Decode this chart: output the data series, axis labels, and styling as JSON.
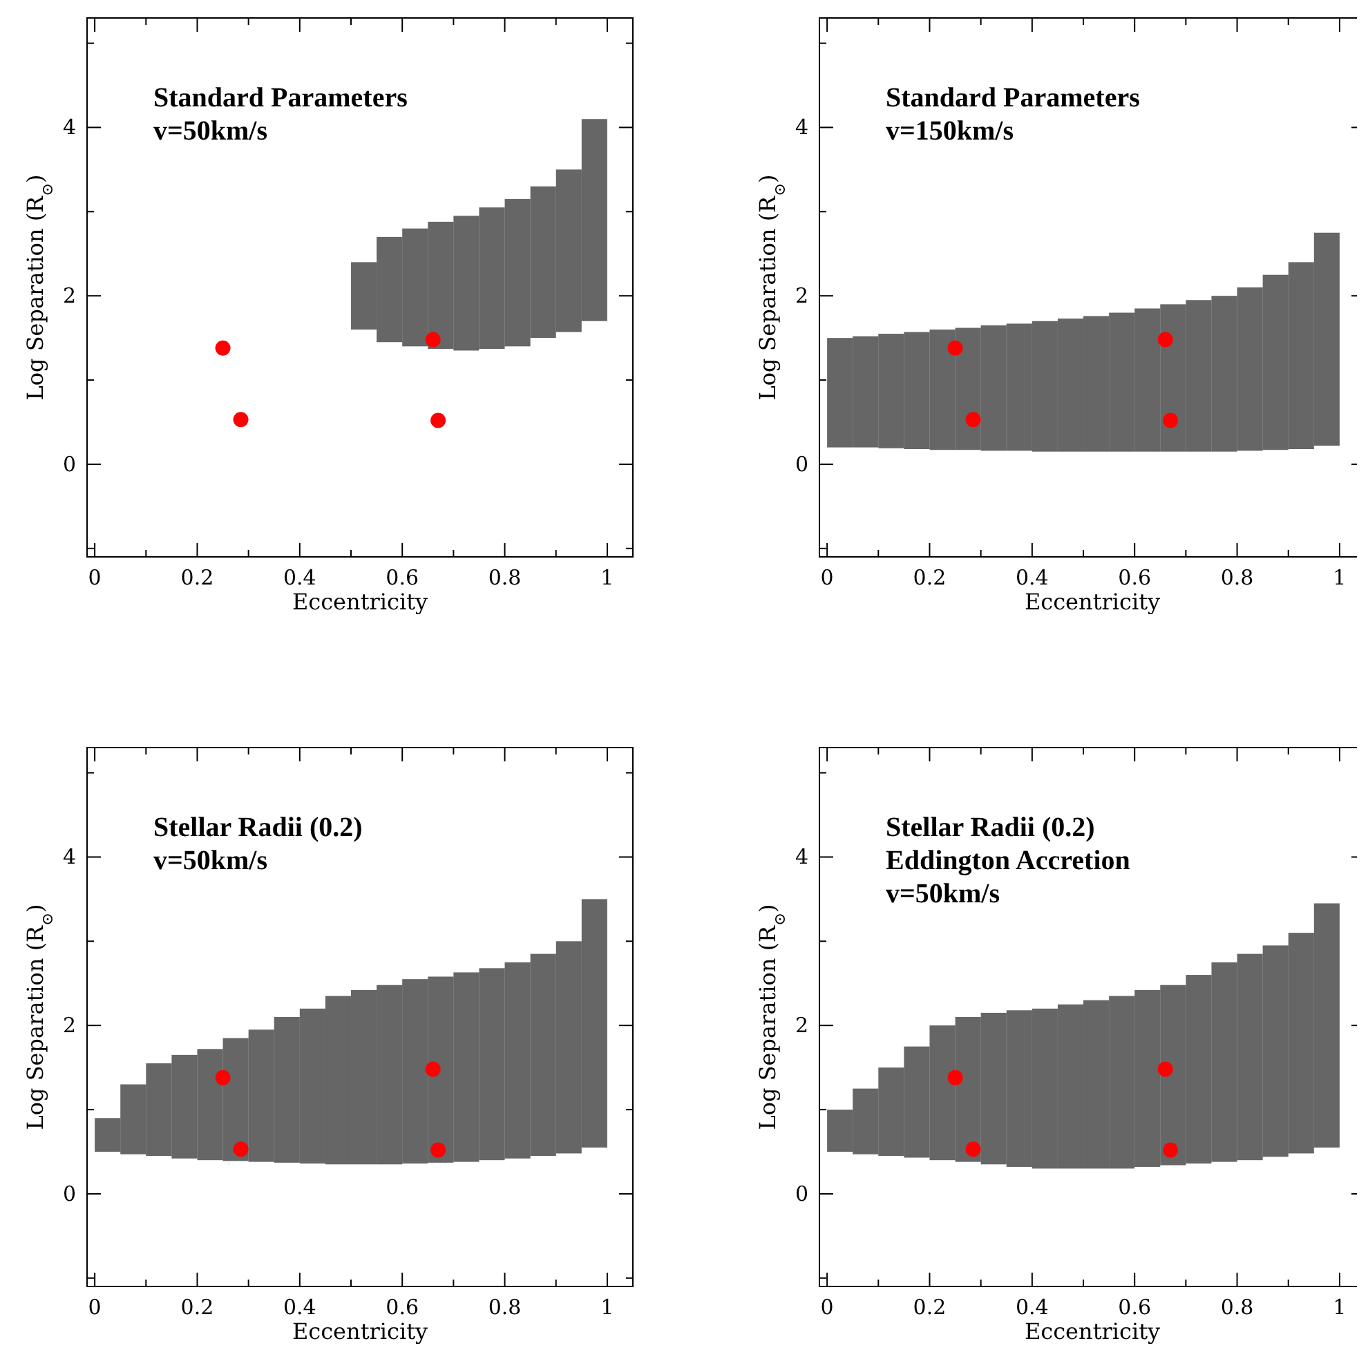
{
  "chart_data": [
    {
      "type": "bar",
      "annotations": [
        "Standard Parameters",
        "v=50km/s"
      ],
      "xlabel": "Eccentricity",
      "ylabel": "Log Separation (R$_{⊙}$)",
      "xlim": [
        -0.015,
        1.05
      ],
      "ylim": [
        -1.1,
        5.3
      ],
      "xticks": [
        0,
        {
          "value": 0.1,
          "label": null
        },
        0.2,
        {
          "value": 0.3,
          "label": null
        },
        0.4,
        {
          "value": 0.5,
          "label": null
        },
        0.6,
        {
          "value": 0.7,
          "label": null
        },
        0.8,
        {
          "value": 0.9,
          "label": null
        },
        1
      ],
      "yticks": [
        {
          "value": -1,
          "label": null
        },
        0,
        {
          "value": 1,
          "label": null
        },
        2,
        {
          "value": 3,
          "label": null
        },
        4,
        {
          "value": 5,
          "label": null
        }
      ],
      "series": [
        {
          "color": "#000000",
          "x": [
            0.525,
            0.575,
            0.625,
            0.675,
            0.725,
            0.775,
            0.825,
            0.875,
            0.925,
            0.975
          ],
          "base": [
            1.6,
            1.45,
            1.4,
            1.37,
            1.35,
            1.37,
            1.4,
            1.5,
            1.57,
            1.7
          ],
          "values": [
            0.8,
            1.25,
            1.4,
            1.51,
            1.6,
            1.68,
            1.75,
            1.8,
            1.93,
            2.4
          ]
        },
        {
          "type": "scatter",
          "color": "#ff0000",
          "x": [
            0.25,
            0.285,
            0.66,
            0.67
          ],
          "values": [
            1.38,
            0.53,
            1.48,
            0.52
          ]
        }
      ]
    },
    {
      "type": "bar",
      "annotations": [
        "Standard Parameters",
        "v=150km/s"
      ],
      "xlabel": "Eccentricity",
      "ylabel": "Log Separation (R$_{⊙}$)",
      "xlim": [
        -0.015,
        1.05
      ],
      "ylim": [
        -1.1,
        5.3
      ],
      "xticks": [
        0,
        {
          "value": 0.1,
          "label": null
        },
        0.2,
        {
          "value": 0.3,
          "label": null
        },
        0.4,
        {
          "value": 0.5,
          "label": null
        },
        0.6,
        {
          "value": 0.7,
          "label": null
        },
        0.8,
        {
          "value": 0.9,
          "label": null
        },
        1
      ],
      "yticks": [
        {
          "value": -1,
          "label": null
        },
        0,
        {
          "value": 1,
          "label": null
        },
        2,
        {
          "value": 3,
          "label": null
        },
        4,
        {
          "value": 5,
          "label": null
        }
      ],
      "series": [
        {
          "color": "#000000",
          "x": [
            0.025,
            0.075,
            0.125,
            0.175,
            0.225,
            0.275,
            0.325,
            0.375,
            0.425,
            0.475,
            0.525,
            0.575,
            0.625,
            0.675,
            0.725,
            0.775,
            0.825,
            0.875,
            0.925,
            0.975
          ],
          "base": [
            0.2,
            0.2,
            0.19,
            0.18,
            0.17,
            0.17,
            0.16,
            0.16,
            0.15,
            0.15,
            0.15,
            0.15,
            0.15,
            0.15,
            0.15,
            0.15,
            0.16,
            0.17,
            0.18,
            0.22
          ],
          "values": [
            1.3,
            1.32,
            1.36,
            1.39,
            1.43,
            1.45,
            1.49,
            1.51,
            1.55,
            1.58,
            1.61,
            1.65,
            1.7,
            1.75,
            1.8,
            1.85,
            1.94,
            2.08,
            2.22,
            2.53
          ]
        },
        {
          "type": "scatter",
          "color": "#ff0000",
          "x": [
            0.25,
            0.285,
            0.66,
            0.67
          ],
          "values": [
            1.38,
            0.53,
            1.48,
            0.52
          ]
        }
      ]
    },
    {
      "type": "bar",
      "annotations": [
        "Stellar Radii (0.2)",
        "v=50km/s"
      ],
      "xlabel": "Eccentricity",
      "ylabel": "Log Separation (R$_{⊙}$)",
      "xlim": [
        -0.015,
        1.05
      ],
      "ylim": [
        -1.1,
        5.3
      ],
      "xticks": [
        0,
        {
          "value": 0.1,
          "label": null
        },
        0.2,
        {
          "value": 0.3,
          "label": null
        },
        0.4,
        {
          "value": 0.5,
          "label": null
        },
        0.6,
        {
          "value": 0.7,
          "label": null
        },
        0.8,
        {
          "value": 0.9,
          "label": null
        },
        1
      ],
      "yticks": [
        {
          "value": -1,
          "label": null
        },
        0,
        {
          "value": 1,
          "label": null
        },
        2,
        {
          "value": 3,
          "label": null
        },
        4,
        {
          "value": 5,
          "label": null
        }
      ],
      "series": [
        {
          "color": "#000000",
          "x": [
            0.025,
            0.075,
            0.125,
            0.175,
            0.225,
            0.275,
            0.325,
            0.375,
            0.425,
            0.475,
            0.525,
            0.575,
            0.625,
            0.675,
            0.725,
            0.775,
            0.825,
            0.875,
            0.925,
            0.975
          ],
          "base": [
            0.5,
            0.47,
            0.45,
            0.42,
            0.4,
            0.39,
            0.38,
            0.37,
            0.36,
            0.35,
            0.35,
            0.35,
            0.36,
            0.37,
            0.38,
            0.4,
            0.42,
            0.45,
            0.48,
            0.55
          ],
          "values": [
            0.4,
            0.83,
            1.1,
            1.23,
            1.32,
            1.46,
            1.57,
            1.73,
            1.84,
            2.0,
            2.07,
            2.13,
            2.19,
            2.21,
            2.25,
            2.28,
            2.33,
            2.4,
            2.52,
            2.95
          ]
        },
        {
          "type": "scatter",
          "color": "#ff0000",
          "x": [
            0.25,
            0.285,
            0.66,
            0.67
          ],
          "values": [
            1.38,
            0.53,
            1.48,
            0.52
          ]
        }
      ]
    },
    {
      "type": "bar",
      "annotations": [
        "Stellar Radii (0.2)",
        "Eddington Accretion",
        "v=50km/s"
      ],
      "xlabel": "Eccentricity",
      "ylabel": "Log Separation (R$_{⊙}$)",
      "xlim": [
        -0.015,
        1.05
      ],
      "ylim": [
        -1.1,
        5.3
      ],
      "xticks": [
        0,
        {
          "value": 0.1,
          "label": null
        },
        0.2,
        {
          "value": 0.3,
          "label": null
        },
        0.4,
        {
          "value": 0.5,
          "label": null
        },
        0.6,
        {
          "value": 0.7,
          "label": null
        },
        0.8,
        {
          "value": 0.9,
          "label": null
        },
        1
      ],
      "yticks": [
        {
          "value": -1,
          "label": null
        },
        0,
        {
          "value": 1,
          "label": null
        },
        2,
        {
          "value": 3,
          "label": null
        },
        4,
        {
          "value": 5,
          "label": null
        }
      ],
      "series": [
        {
          "color": "#000000",
          "x": [
            0.025,
            0.075,
            0.125,
            0.175,
            0.225,
            0.275,
            0.325,
            0.375,
            0.425,
            0.475,
            0.525,
            0.575,
            0.625,
            0.675,
            0.725,
            0.775,
            0.825,
            0.875,
            0.925,
            0.975
          ],
          "base": [
            0.5,
            0.47,
            0.45,
            0.43,
            0.4,
            0.38,
            0.35,
            0.32,
            0.3,
            0.3,
            0.3,
            0.3,
            0.32,
            0.34,
            0.36,
            0.38,
            0.4,
            0.44,
            0.48,
            0.55
          ],
          "values": [
            0.5,
            0.78,
            1.05,
            1.32,
            1.6,
            1.72,
            1.8,
            1.86,
            1.9,
            1.95,
            2.0,
            2.05,
            2.1,
            2.14,
            2.24,
            2.37,
            2.45,
            2.51,
            2.62,
            2.9
          ]
        },
        {
          "type": "scatter",
          "color": "#ff0000",
          "x": [
            0.25,
            0.285,
            0.66,
            0.67
          ],
          "values": [
            1.38,
            0.53,
            1.48,
            0.52
          ]
        }
      ]
    }
  ]
}
